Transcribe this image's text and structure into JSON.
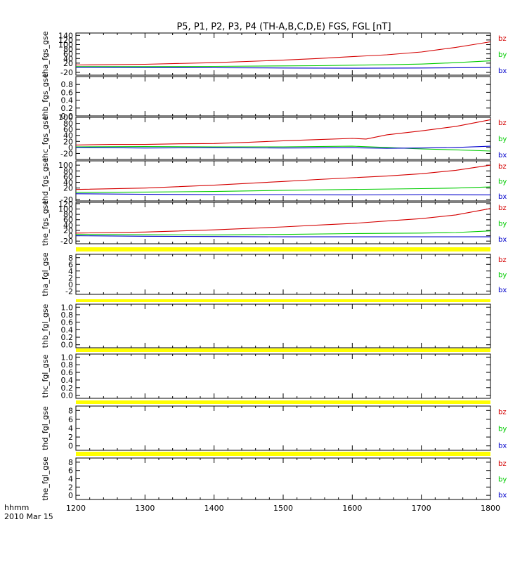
{
  "title": "P5, P1, P2, P3, P4 (TH-A,B,C,D,E) FGS, FGL [nT]",
  "bottom_labels": {
    "format": "hhmm",
    "date": "2010 Mar 15"
  },
  "colors": {
    "bz": "#d40000",
    "by": "#00cc00",
    "bx": "#0000cc",
    "gap": "#ffff00"
  },
  "chart_data": {
    "type": "line",
    "xlabel": "",
    "xlim": [
      1200,
      1800
    ],
    "xticks": [
      "1200",
      "1300",
      "1400",
      "1500",
      "1600",
      "1700",
      "1800"
    ],
    "legend_placement": "right",
    "panels": [
      {
        "ylabel": "tha_fgs_gse",
        "ylim": [
          -32,
          150
        ],
        "yticks": [
          "140",
          "120",
          "100",
          "80",
          "60",
          "40",
          "20",
          "-20"
        ],
        "legend": [
          "bz",
          "by",
          "bx"
        ],
        "series": [
          {
            "name": "bz",
            "color": "#d40000",
            "x": [
              1200,
              1300,
              1400,
              1500,
              1550,
              1600,
              1650,
              1700,
              1725,
              1750,
              1775,
              1800
            ],
            "y": [
              12,
              15,
              22,
              33,
              40,
              48,
              56,
              68,
              78,
              88,
              100,
              112
            ]
          },
          {
            "name": "by",
            "color": "#00cc00",
            "x": [
              1200,
              1300,
              1400,
              1500,
              1550,
              1600,
              1650,
              1700,
              1750,
              1800
            ],
            "y": [
              5,
              5,
              6,
              8,
              9,
              11,
              13,
              16,
              22,
              30
            ]
          },
          {
            "name": "bx",
            "color": "#0000cc",
            "x": [
              1200,
              1300,
              1400,
              1500,
              1600,
              1700,
              1800
            ],
            "y": [
              2,
              1,
              0,
              -1,
              -2,
              -1,
              1
            ]
          }
        ]
      },
      {
        "ylabel": "thb_fgs_gse",
        "ylim": [
          0,
          1.0
        ],
        "yticks": [
          "0.8",
          "0.6",
          "0.4",
          "0.2",
          "0.0"
        ],
        "legend": [],
        "series": []
      },
      {
        "ylabel": "thc_fgs_gse",
        "ylim": [
          -40,
          100
        ],
        "yticks": [
          "100",
          "80",
          "60",
          "40",
          "20",
          "0",
          "-20"
        ],
        "legend": [
          "bz",
          "by",
          "bx"
        ],
        "series": [
          {
            "name": "bz",
            "color": "#d40000",
            "x": [
              1200,
              1250,
              1300,
              1350,
              1400,
              1450,
              1500,
              1550,
              1600,
              1620,
              1650,
              1700,
              1750,
              1800
            ],
            "y": [
              8,
              10,
              10,
              12,
              13,
              17,
              22,
              26,
              30,
              28,
              42,
              55,
              70,
              92
            ]
          },
          {
            "name": "by",
            "color": "#00cc00",
            "x": [
              1200,
              1300,
              1400,
              1500,
              1600,
              1650,
              1700,
              1750,
              1800
            ],
            "y": [
              2,
              3,
              2,
              2,
              4,
              0,
              -5,
              -8,
              -12
            ]
          },
          {
            "name": "bx",
            "color": "#0000cc",
            "x": [
              1200,
              1300,
              1400,
              1500,
              1600,
              1650,
              1700,
              1750,
              1800
            ],
            "y": [
              0,
              -2,
              -1,
              -2,
              -1,
              -3,
              -2,
              0,
              4
            ]
          }
        ]
      },
      {
        "ylabel": "thd_fgs_gse",
        "ylim": [
          -25,
          115
        ],
        "yticks": [
          "100",
          "80",
          "60",
          "40",
          "20",
          "-20"
        ],
        "legend": [
          "bz",
          "by",
          "bx"
        ],
        "series": [
          {
            "name": "bz",
            "color": "#d40000",
            "x": [
              1200,
              1300,
              1400,
              1500,
              1550,
              1600,
              1650,
              1700,
              1750,
              1800
            ],
            "y": [
              15,
              20,
              30,
              43,
              50,
              56,
              62,
              70,
              82,
              100
            ]
          },
          {
            "name": "by",
            "color": "#00cc00",
            "x": [
              1200,
              1300,
              1400,
              1500,
              1600,
              1700,
              1750,
              1800
            ],
            "y": [
              5,
              6,
              8,
              12,
              15,
              18,
              20,
              24
            ]
          },
          {
            "name": "bx",
            "color": "#0000cc",
            "x": [
              1200,
              1300,
              1400,
              1500,
              1600,
              1700,
              1800
            ],
            "y": [
              0,
              -2,
              -3,
              -3,
              -4,
              -3,
              -4
            ]
          }
        ]
      },
      {
        "ylabel": "the_fgs_gse",
        "ylim": [
          -30,
          125
        ],
        "yticks": [
          "120",
          "100",
          "80",
          "60",
          "40",
          "20",
          "0",
          "-20"
        ],
        "legend": [
          "bz",
          "by",
          "bx"
        ],
        "series": [
          {
            "name": "bz",
            "color": "#d40000",
            "x": [
              1200,
              1300,
              1400,
              1500,
              1550,
              1600,
              1650,
              1700,
              1750,
              1800
            ],
            "y": [
              10,
              14,
              22,
              33,
              40,
              46,
              55,
              64,
              78,
              102
            ]
          },
          {
            "name": "by",
            "color": "#00cc00",
            "x": [
              1200,
              1300,
              1400,
              1500,
              1600,
              1700,
              1750,
              1800
            ],
            "y": [
              5,
              4,
              3,
              5,
              8,
              10,
              12,
              18
            ]
          },
          {
            "name": "bx",
            "color": "#0000cc",
            "x": [
              1200,
              1300,
              1400,
              1500,
              1600,
              1700,
              1800
            ],
            "y": [
              0,
              -2,
              -3,
              -4,
              -4,
              -4,
              -4
            ]
          }
        ]
      },
      {
        "ylabel": "tha_fgl_gse",
        "ylim": [
          -3,
          9
        ],
        "yticks": [
          "8",
          "6",
          "4",
          "2",
          "0",
          "-2"
        ],
        "legend": [
          "bz",
          "by",
          "bx"
        ],
        "series": []
      },
      {
        "ylabel": "thb_fgl_gse",
        "ylim": [
          -0.08,
          1.08
        ],
        "yticks": [
          "1.0",
          "0.8",
          "0.6",
          "0.4",
          "0.2",
          "0.0"
        ],
        "legend": [],
        "series": []
      },
      {
        "ylabel": "thc_fgl_gse",
        "ylim": [
          -0.08,
          1.08
        ],
        "yticks": [
          "1.0",
          "0.8",
          "0.6",
          "0.4",
          "0.2",
          "0.0"
        ],
        "legend": [],
        "series": []
      },
      {
        "ylabel": "thd_fgl_gse",
        "ylim": [
          -1,
          9
        ],
        "yticks": [
          "8",
          "6",
          "4",
          "2",
          "0"
        ],
        "legend": [
          "bz",
          "by",
          "bx"
        ],
        "series": []
      },
      {
        "ylabel": "the_fgl_gse",
        "ylim": [
          -1,
          9
        ],
        "yticks": [
          "8",
          "6",
          "4",
          "2",
          "0"
        ],
        "legend": [
          "bz",
          "by",
          "bx"
        ],
        "series": []
      }
    ]
  }
}
